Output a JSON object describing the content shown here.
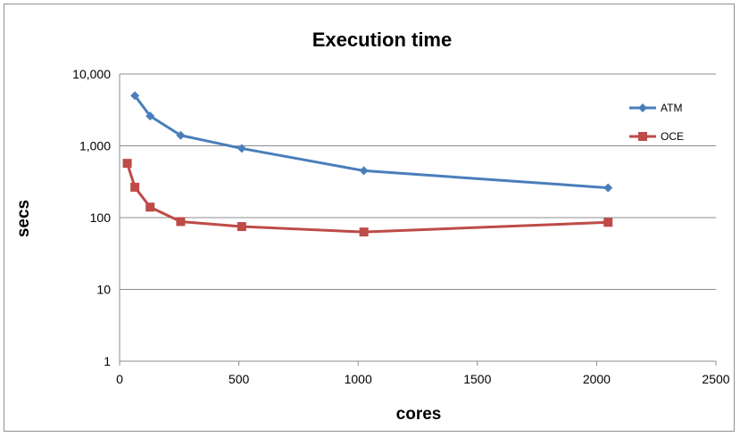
{
  "chart_data": {
    "type": "line",
    "title": "Execution time",
    "xlabel": "cores",
    "ylabel": "secs",
    "y_scale": "log",
    "xlim": [
      0,
      2500
    ],
    "ylim": [
      1,
      10000
    ],
    "x_ticks": [
      "0",
      "500",
      "1000",
      "1500",
      "2000",
      "2500"
    ],
    "y_ticks": [
      "1",
      "10",
      "100",
      "1,000",
      "10,000"
    ],
    "grid": "horizontal",
    "legend_position": "right",
    "series": [
      {
        "name": "ATM",
        "color": "#4a7ebb",
        "marker": "diamond",
        "x": [
          64,
          128,
          256,
          512,
          1024,
          2048
        ],
        "y": [
          5000,
          2600,
          1400,
          920,
          450,
          260
        ]
      },
      {
        "name": "OCE",
        "color": "#be4b48",
        "marker": "square",
        "x": [
          32,
          64,
          128,
          256,
          512,
          1024,
          2048
        ],
        "y": [
          570,
          265,
          140,
          88,
          75,
          63,
          86
        ]
      }
    ]
  }
}
